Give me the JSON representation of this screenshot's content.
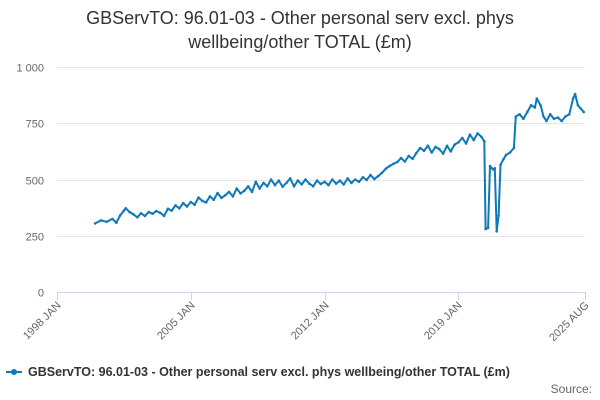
{
  "chart_data": {
    "type": "line",
    "title_line1": "GBServTO: 96.01-03 - Other personal serv excl. phys",
    "title_line2": "wellbeing/other TOTAL (£m)",
    "xlabel": "",
    "ylabel": "",
    "ylim": [
      0,
      1000
    ],
    "yticks": [
      {
        "value": 0,
        "label": "0"
      },
      {
        "value": 250,
        "label": "250"
      },
      {
        "value": 500,
        "label": "500"
      },
      {
        "value": 750,
        "label": "750"
      },
      {
        "value": 1000,
        "label": "1 000"
      }
    ],
    "xlim": [
      1998.0,
      2025.62
    ],
    "xticks": [
      {
        "value": 1998.0,
        "label": "1998 JAN"
      },
      {
        "value": 2005.0,
        "label": "2005 JAN"
      },
      {
        "value": 2012.0,
        "label": "2012 JAN"
      },
      {
        "value": 2019.0,
        "label": "2019 JAN"
      },
      {
        "value": 2025.62,
        "label": "2025 AUG"
      }
    ],
    "grid": true,
    "color": "#0d79b8",
    "series": [
      {
        "name": "GBServTO: 96.01-03 - Other personal serv excl. phys wellbeing/other TOTAL (£m)",
        "points": [
          [
            2000.0,
            305
          ],
          [
            2000.3,
            318
          ],
          [
            2000.6,
            312
          ],
          [
            2000.9,
            325
          ],
          [
            2001.1,
            308
          ],
          [
            2001.3,
            340
          ],
          [
            2001.5,
            362
          ],
          [
            2001.6,
            372
          ],
          [
            2001.8,
            355
          ],
          [
            2002.0,
            345
          ],
          [
            2002.2,
            332
          ],
          [
            2002.4,
            350
          ],
          [
            2002.6,
            338
          ],
          [
            2002.8,
            355
          ],
          [
            2003.0,
            348
          ],
          [
            2003.2,
            360
          ],
          [
            2003.4,
            352
          ],
          [
            2003.6,
            338
          ],
          [
            2003.8,
            370
          ],
          [
            2004.0,
            362
          ],
          [
            2004.2,
            385
          ],
          [
            2004.4,
            372
          ],
          [
            2004.6,
            395
          ],
          [
            2004.8,
            380
          ],
          [
            2005.0,
            400
          ],
          [
            2005.2,
            388
          ],
          [
            2005.4,
            420
          ],
          [
            2005.6,
            405
          ],
          [
            2005.8,
            398
          ],
          [
            2006.0,
            425
          ],
          [
            2006.2,
            410
          ],
          [
            2006.4,
            440
          ],
          [
            2006.6,
            418
          ],
          [
            2006.8,
            430
          ],
          [
            2007.0,
            445
          ],
          [
            2007.2,
            425
          ],
          [
            2007.4,
            460
          ],
          [
            2007.6,
            438
          ],
          [
            2007.8,
            450
          ],
          [
            2008.0,
            470
          ],
          [
            2008.2,
            445
          ],
          [
            2008.4,
            490
          ],
          [
            2008.6,
            460
          ],
          [
            2008.8,
            485
          ],
          [
            2009.0,
            470
          ],
          [
            2009.2,
            500
          ],
          [
            2009.4,
            475
          ],
          [
            2009.6,
            495
          ],
          [
            2009.8,
            468
          ],
          [
            2010.0,
            485
          ],
          [
            2010.2,
            505
          ],
          [
            2010.4,
            470
          ],
          [
            2010.6,
            495
          ],
          [
            2010.8,
            478
          ],
          [
            2011.0,
            500
          ],
          [
            2011.2,
            482
          ],
          [
            2011.4,
            470
          ],
          [
            2011.6,
            495
          ],
          [
            2011.8,
            480
          ],
          [
            2012.0,
            490
          ],
          [
            2012.2,
            475
          ],
          [
            2012.4,
            500
          ],
          [
            2012.6,
            482
          ],
          [
            2012.8,
            495
          ],
          [
            2013.0,
            478
          ],
          [
            2013.2,
            505
          ],
          [
            2013.4,
            485
          ],
          [
            2013.6,
            500
          ],
          [
            2013.8,
            490
          ],
          [
            2014.0,
            510
          ],
          [
            2014.2,
            498
          ],
          [
            2014.4,
            520
          ],
          [
            2014.6,
            502
          ],
          [
            2014.8,
            515
          ],
          [
            2015.0,
            530
          ],
          [
            2015.2,
            548
          ],
          [
            2015.4,
            560
          ],
          [
            2015.6,
            570
          ],
          [
            2015.8,
            578
          ],
          [
            2016.0,
            595
          ],
          [
            2016.2,
            580
          ],
          [
            2016.4,
            605
          ],
          [
            2016.6,
            592
          ],
          [
            2016.8,
            618
          ],
          [
            2017.0,
            640
          ],
          [
            2017.2,
            628
          ],
          [
            2017.4,
            650
          ],
          [
            2017.6,
            620
          ],
          [
            2017.8,
            645
          ],
          [
            2018.0,
            635
          ],
          [
            2018.2,
            615
          ],
          [
            2018.4,
            650
          ],
          [
            2018.6,
            625
          ],
          [
            2018.8,
            655
          ],
          [
            2019.0,
            665
          ],
          [
            2019.2,
            685
          ],
          [
            2019.4,
            660
          ],
          [
            2019.6,
            700
          ],
          [
            2019.8,
            675
          ],
          [
            2020.0,
            705
          ],
          [
            2020.2,
            690
          ],
          [
            2020.35,
            670
          ],
          [
            2020.42,
            280
          ],
          [
            2020.55,
            285
          ],
          [
            2020.65,
            560
          ],
          [
            2020.8,
            545
          ],
          [
            2020.9,
            550
          ],
          [
            2021.0,
            270
          ],
          [
            2021.1,
            340
          ],
          [
            2021.2,
            565
          ],
          [
            2021.35,
            590
          ],
          [
            2021.5,
            610
          ],
          [
            2021.7,
            620
          ],
          [
            2021.9,
            640
          ],
          [
            2022.0,
            780
          ],
          [
            2022.2,
            790
          ],
          [
            2022.4,
            770
          ],
          [
            2022.6,
            800
          ],
          [
            2022.8,
            830
          ],
          [
            2023.0,
            820
          ],
          [
            2023.1,
            860
          ],
          [
            2023.3,
            830
          ],
          [
            2023.45,
            780
          ],
          [
            2023.6,
            760
          ],
          [
            2023.8,
            790
          ],
          [
            2024.0,
            770
          ],
          [
            2024.2,
            775
          ],
          [
            2024.4,
            760
          ],
          [
            2024.6,
            780
          ],
          [
            2024.8,
            790
          ],
          [
            2025.0,
            860
          ],
          [
            2025.1,
            880
          ],
          [
            2025.25,
            830
          ],
          [
            2025.4,
            815
          ],
          [
            2025.55,
            800
          ]
        ]
      }
    ]
  },
  "legend": {
    "label": "GBServTO: 96.01-03 - Other personal serv excl. phys wellbeing/other TOTAL (£m)"
  },
  "source": {
    "label": "Source:"
  }
}
